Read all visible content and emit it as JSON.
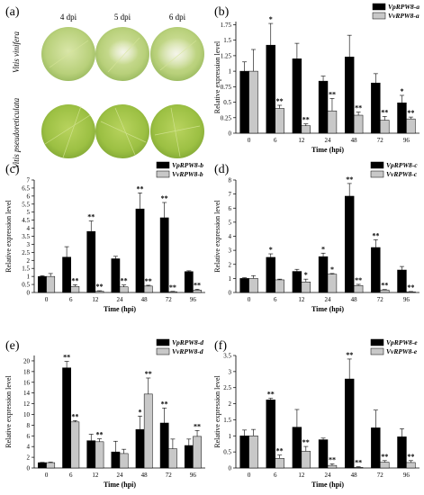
{
  "panel_a": {
    "label": "(a)",
    "columns": [
      "4 dpi",
      "5 dpi",
      "6 dpi"
    ],
    "rows": [
      "Vitis vinifera",
      "Vitis pseudoreticulata"
    ]
  },
  "chart_data": [
    {
      "panel": "(b)",
      "type": "bar",
      "categories": [
        "0",
        "6",
        "12",
        "24",
        "48",
        "72",
        "96"
      ],
      "xlabel": "Time (hpi)",
      "ylabel": "Relative expression level",
      "ylim": [
        0,
        1.8
      ],
      "yticks": [
        0,
        0.25,
        0.5,
        0.75,
        1,
        1.25,
        1.5,
        1.75
      ],
      "series": [
        {
          "name": "VpRPW8-a",
          "color": "#000000",
          "values": [
            1.0,
            1.42,
            1.2,
            0.84,
            1.23,
            0.81,
            0.49
          ],
          "errors": [
            0.15,
            0.35,
            0.25,
            0.08,
            0.35,
            0.15,
            0.12
          ],
          "stars": [
            "",
            "*",
            "",
            "",
            "",
            "",
            "*"
          ]
        },
        {
          "name": "VvRPW8-a",
          "color": "#c8c8c8",
          "values": [
            1.0,
            0.4,
            0.12,
            0.36,
            0.29,
            0.21,
            0.23
          ],
          "errors": [
            0.35,
            0.05,
            0.03,
            0.2,
            0.05,
            0.06,
            0.03
          ],
          "stars": [
            "",
            "**",
            "**",
            "**",
            "**",
            "**",
            "**"
          ]
        }
      ]
    },
    {
      "panel": "(c)",
      "type": "bar",
      "categories": [
        "0",
        "6",
        "12",
        "24",
        "48",
        "72",
        "96"
      ],
      "xlabel": "Time (hpi)",
      "ylabel": "Relative expression level",
      "ylim": [
        0,
        7
      ],
      "yticks": [
        0,
        0.5,
        1,
        1.5,
        2,
        2.5,
        3,
        3.5,
        4,
        4.5,
        5,
        5.5,
        6,
        6.5,
        7
      ],
      "series": [
        {
          "name": "VpRPW8-b",
          "color": "#000000",
          "values": [
            1.0,
            2.2,
            3.8,
            2.1,
            5.2,
            4.65,
            1.3
          ],
          "errors": [
            0.05,
            0.65,
            0.65,
            0.15,
            1.0,
            0.95,
            0.05
          ],
          "stars": [
            "",
            "",
            "**",
            "",
            "**",
            "**",
            ""
          ]
        },
        {
          "name": "VvRPW8-b",
          "color": "#c8c8c8",
          "values": [
            1.0,
            0.38,
            0.08,
            0.35,
            0.4,
            0.05,
            0.15
          ],
          "errors": [
            0.18,
            0.1,
            0.03,
            0.12,
            0.05,
            0.02,
            0.05
          ],
          "stars": [
            "",
            "**",
            "**",
            "**",
            "**",
            "**",
            "**"
          ]
        }
      ]
    },
    {
      "panel": "(d)",
      "type": "bar",
      "categories": [
        "0",
        "6",
        "12",
        "24",
        "48",
        "72",
        "96"
      ],
      "xlabel": "Time (hpi)",
      "ylabel": "Relative expression level",
      "ylim": [
        0,
        8
      ],
      "yticks": [
        0,
        1,
        2,
        3,
        4,
        5,
        6,
        7,
        8
      ],
      "series": [
        {
          "name": "VpRPW8-c",
          "color": "#000000",
          "values": [
            1.0,
            2.5,
            1.5,
            2.55,
            6.85,
            3.2,
            1.6
          ],
          "errors": [
            0.05,
            0.25,
            0.15,
            0.25,
            0.9,
            0.55,
            0.25
          ],
          "stars": [
            "",
            "*",
            "",
            "*",
            "**",
            "**",
            ""
          ]
        },
        {
          "name": "VvRPW8-c",
          "color": "#c8c8c8",
          "values": [
            1.0,
            0.9,
            0.75,
            1.3,
            0.5,
            0.18,
            0.05
          ],
          "errors": [
            0.2,
            0.05,
            0.2,
            0.05,
            0.08,
            0.03,
            0.02
          ],
          "stars": [
            "",
            "",
            "*",
            "*",
            "**",
            "**",
            "**"
          ]
        }
      ]
    },
    {
      "panel": "(e)",
      "type": "bar",
      "categories": [
        "0",
        "6",
        "12",
        "24",
        "48",
        "72",
        "96"
      ],
      "xlabel": "Time (hpi)",
      "ylabel": "Relative expression level",
      "ylim": [
        0,
        21
      ],
      "yticks": [
        0,
        2,
        4,
        6,
        8,
        10,
        12,
        14,
        16,
        18,
        20
      ],
      "series": [
        {
          "name": "VpRPW8-d",
          "color": "#000000",
          "values": [
            1.0,
            18.7,
            5.1,
            3.0,
            7.2,
            8.4,
            4.2
          ],
          "errors": [
            0.05,
            1.2,
            1.2,
            2.0,
            2.5,
            2.8,
            1.2
          ],
          "stars": [
            "",
            "**",
            "",
            "",
            "*",
            "**",
            ""
          ]
        },
        {
          "name": "VvRPW8-d",
          "color": "#c8c8c8",
          "values": [
            1.0,
            8.6,
            4.9,
            2.7,
            13.8,
            3.6,
            5.9
          ],
          "errors": [
            0.1,
            0.25,
            0.55,
            0.8,
            3.0,
            1.8,
            1.1
          ],
          "stars": [
            "",
            "**",
            "**",
            "",
            "**",
            "",
            "**"
          ]
        }
      ]
    },
    {
      "panel": "(f)",
      "type": "bar",
      "categories": [
        "0",
        "6",
        "12",
        "24",
        "48",
        "72",
        "96"
      ],
      "xlabel": "Time (hpi)",
      "ylabel": "Relative expression level",
      "ylim": [
        0,
        3.5
      ],
      "yticks": [
        0,
        0.5,
        1,
        1.5,
        2,
        2.5,
        3,
        3.5
      ],
      "series": [
        {
          "name": "VpRPW8-e",
          "color": "#000000",
          "values": [
            1.0,
            2.12,
            1.27,
            0.88,
            2.77,
            1.25,
            0.97
          ],
          "errors": [
            0.18,
            0.05,
            0.55,
            0.05,
            0.62,
            0.55,
            0.25
          ],
          "stars": [
            "",
            "**",
            "",
            "",
            "**",
            "",
            ""
          ]
        },
        {
          "name": "VvRPW8-e",
          "color": "#c8c8c8",
          "values": [
            1.0,
            0.3,
            0.52,
            0.08,
            0.02,
            0.18,
            0.17
          ],
          "errors": [
            0.2,
            0.1,
            0.15,
            0.05,
            0.02,
            0.05,
            0.06
          ],
          "stars": [
            "",
            "**",
            "**",
            "**",
            "**",
            "**",
            "**"
          ]
        }
      ]
    }
  ]
}
